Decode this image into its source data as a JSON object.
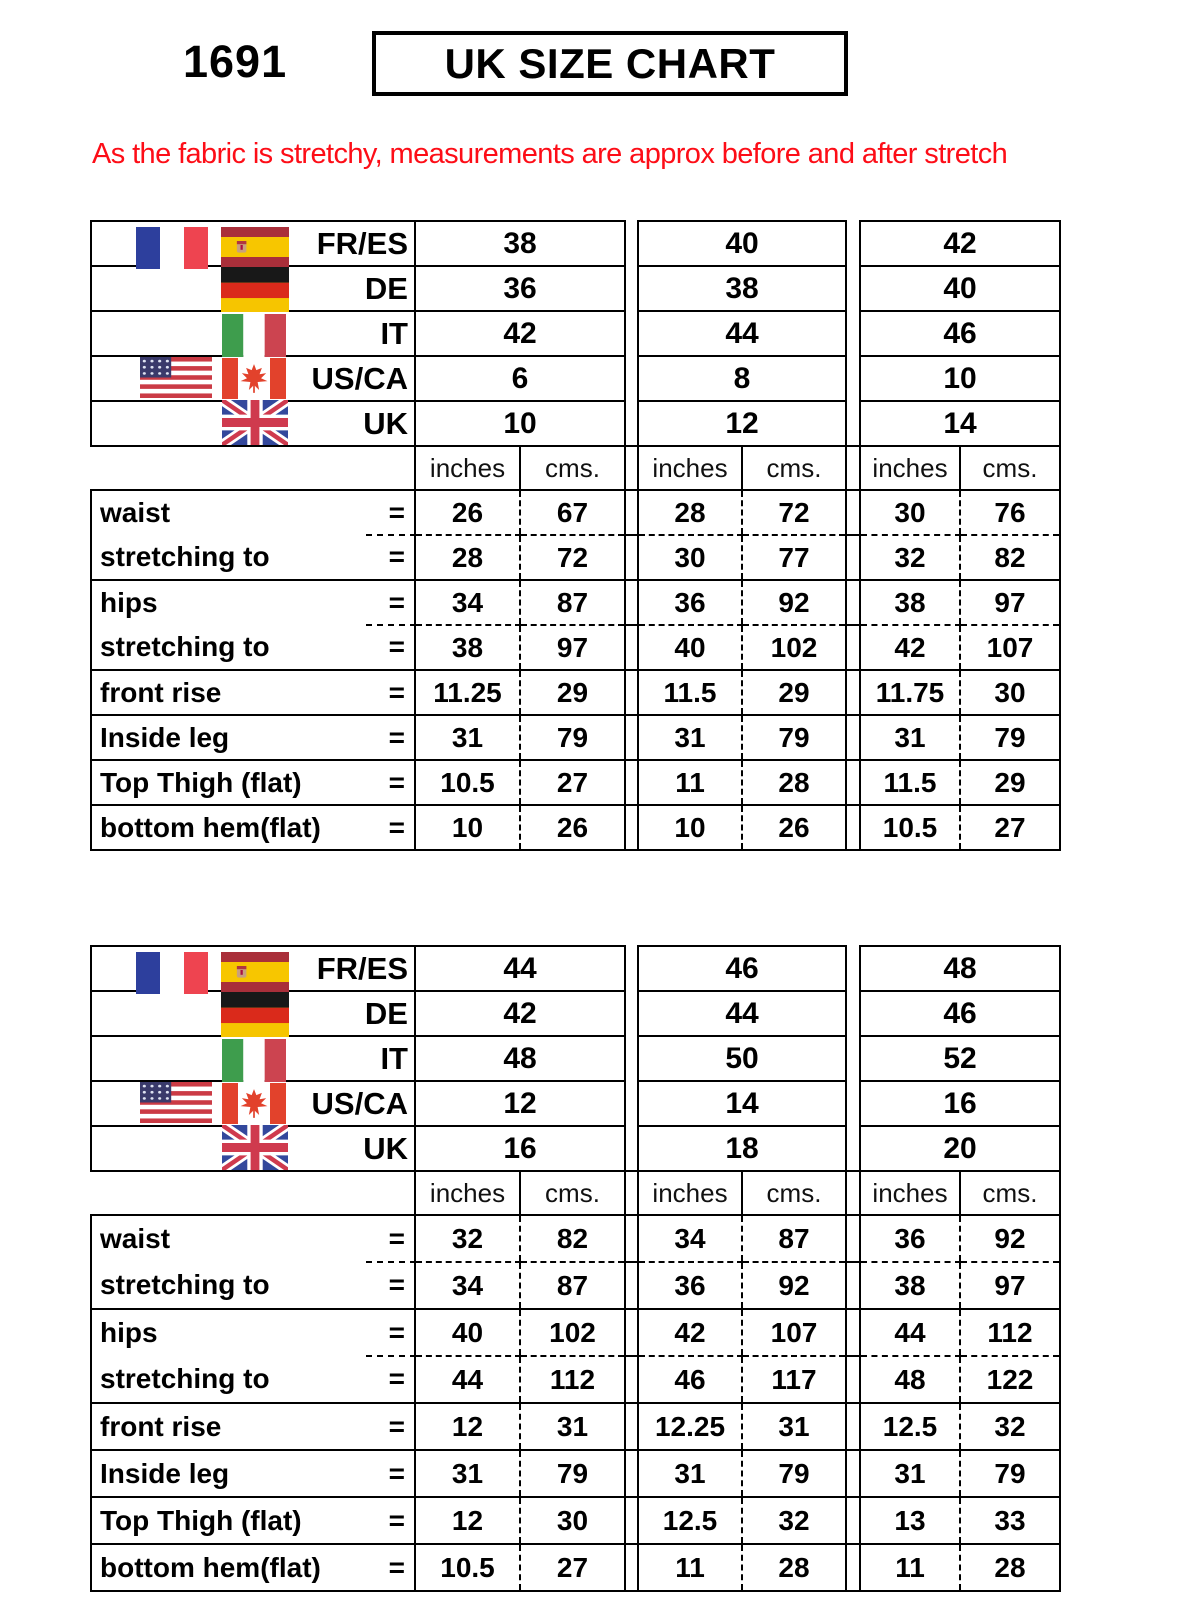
{
  "page": {
    "product_code": "1691",
    "title": "UK SIZE CHART",
    "note": "As the fabric is stretchy, measurements are approx before and after stretch"
  },
  "colors": {
    "note_red": "#fd0d17",
    "border_black": "#000000"
  },
  "unit_headers": [
    "inches",
    "cms."
  ],
  "size_tables": [
    {
      "size_rows": [
        {
          "label": "FR/ES",
          "flags": [
            "france",
            "spain"
          ],
          "sizes": [
            "38",
            "40",
            "42"
          ]
        },
        {
          "label": "DE",
          "flags": [
            "germany"
          ],
          "sizes": [
            "36",
            "38",
            "40"
          ]
        },
        {
          "label": "IT",
          "flags": [
            "italy"
          ],
          "sizes": [
            "42",
            "44",
            "46"
          ]
        },
        {
          "label": "US/CA",
          "flags": [
            "usa",
            "canada"
          ],
          "sizes": [
            "6",
            "8",
            "10"
          ]
        },
        {
          "label": "UK",
          "flags": [
            "uk"
          ],
          "sizes": [
            "10",
            "12",
            "14"
          ]
        }
      ],
      "measurement_rows": [
        {
          "label": "waist",
          "eq": "=",
          "divider_below": "dashed",
          "values": [
            [
              "26",
              "67"
            ],
            [
              "28",
              "72"
            ],
            [
              "30",
              "76"
            ]
          ]
        },
        {
          "label": "stretching to",
          "eq": "=",
          "divider_below": "solid",
          "values": [
            [
              "28",
              "72"
            ],
            [
              "30",
              "77"
            ],
            [
              "32",
              "82"
            ]
          ]
        },
        {
          "label": "hips",
          "eq": "=",
          "divider_below": "dashed",
          "values": [
            [
              "34",
              "87"
            ],
            [
              "36",
              "92"
            ],
            [
              "38",
              "97"
            ]
          ]
        },
        {
          "label": "stretching to",
          "eq": "=",
          "divider_below": "solid",
          "values": [
            [
              "38",
              "97"
            ],
            [
              "40",
              "102"
            ],
            [
              "42",
              "107"
            ]
          ]
        },
        {
          "label": "front rise",
          "eq": "=",
          "divider_below": "solid",
          "values": [
            [
              "11.25",
              "29"
            ],
            [
              "11.5",
              "29"
            ],
            [
              "11.75",
              "30"
            ]
          ]
        },
        {
          "label": "Inside leg",
          "eq": "=",
          "divider_below": "solid",
          "values": [
            [
              "31",
              "79"
            ],
            [
              "31",
              "79"
            ],
            [
              "31",
              "79"
            ]
          ]
        },
        {
          "label": "Top Thigh (flat)",
          "eq": "=",
          "divider_below": "solid",
          "values": [
            [
              "10.5",
              "27"
            ],
            [
              "11",
              "28"
            ],
            [
              "11.5",
              "29"
            ]
          ]
        },
        {
          "label": "bottom hem(flat)",
          "eq": "=",
          "divider_below": "solid",
          "values": [
            [
              "10",
              "26"
            ],
            [
              "10",
              "26"
            ],
            [
              "10.5",
              "27"
            ]
          ]
        }
      ]
    },
    {
      "size_rows": [
        {
          "label": "FR/ES",
          "flags": [
            "france",
            "spain"
          ],
          "sizes": [
            "44",
            "46",
            "48"
          ]
        },
        {
          "label": "DE",
          "flags": [
            "germany"
          ],
          "sizes": [
            "42",
            "44",
            "46"
          ]
        },
        {
          "label": "IT",
          "flags": [
            "italy"
          ],
          "sizes": [
            "48",
            "50",
            "52"
          ]
        },
        {
          "label": "US/CA",
          "flags": [
            "usa",
            "canada"
          ],
          "sizes": [
            "12",
            "14",
            "16"
          ]
        },
        {
          "label": "UK",
          "flags": [
            "uk"
          ],
          "sizes": [
            "16",
            "18",
            "20"
          ]
        }
      ],
      "measurement_rows": [
        {
          "label": "waist",
          "eq": "=",
          "divider_below": "dashed",
          "values": [
            [
              "32",
              "82"
            ],
            [
              "34",
              "87"
            ],
            [
              "36",
              "92"
            ]
          ]
        },
        {
          "label": "stretching to",
          "eq": "=",
          "divider_below": "solid",
          "values": [
            [
              "34",
              "87"
            ],
            [
              "36",
              "92"
            ],
            [
              "38",
              "97"
            ]
          ]
        },
        {
          "label": "hips",
          "eq": "=",
          "divider_below": "dashed",
          "values": [
            [
              "40",
              "102"
            ],
            [
              "42",
              "107"
            ],
            [
              "44",
              "112"
            ]
          ]
        },
        {
          "label": "stretching to",
          "eq": "=",
          "divider_below": "solid",
          "values": [
            [
              "44",
              "112"
            ],
            [
              "46",
              "117"
            ],
            [
              "48",
              "122"
            ]
          ]
        },
        {
          "label": "front rise",
          "eq": "=",
          "divider_below": "solid",
          "values": [
            [
              "12",
              "31"
            ],
            [
              "12.25",
              "31"
            ],
            [
              "12.5",
              "32"
            ]
          ]
        },
        {
          "label": "Inside leg",
          "eq": "=",
          "divider_below": "solid",
          "values": [
            [
              "31",
              "79"
            ],
            [
              "31",
              "79"
            ],
            [
              "31",
              "79"
            ]
          ]
        },
        {
          "label": "Top Thigh (flat)",
          "eq": "=",
          "divider_below": "solid",
          "values": [
            [
              "12",
              "30"
            ],
            [
              "12.5",
              "32"
            ],
            [
              "13",
              "33"
            ]
          ]
        },
        {
          "label": "bottom hem(flat)",
          "eq": "=",
          "divider_below": "solid",
          "values": [
            [
              "10.5",
              "27"
            ],
            [
              "11",
              "28"
            ],
            [
              "11",
              "28"
            ]
          ]
        }
      ]
    }
  ]
}
